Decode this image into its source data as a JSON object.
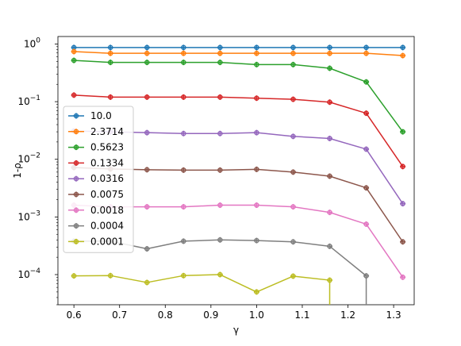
{
  "chart_data": {
    "type": "line",
    "xlabel": "γ",
    "ylabel": "1-ρ",
    "yscale": "log",
    "xlim": [
      0.565,
      1.345
    ],
    "ylim": [
      3e-05,
      1.35
    ],
    "xticks": [
      0.6,
      0.7,
      0.8,
      0.9,
      1.0,
      1.1,
      1.2,
      1.3
    ],
    "xtick_labels": [
      "0.6",
      "0.7",
      "0.8",
      "0.9",
      "1.0",
      "1.1",
      "1.2",
      "1.3"
    ],
    "yticks": [
      1,
      0.1,
      0.01,
      0.001,
      0.0001
    ],
    "ytick_labels": [
      {
        "base": "10",
        "exp": "0"
      },
      {
        "base": "10",
        "exp": "−1"
      },
      {
        "base": "10",
        "exp": "−2"
      },
      {
        "base": "10",
        "exp": "−3"
      },
      {
        "base": "10",
        "exp": "−4"
      }
    ],
    "grid": false,
    "legend_position": "left",
    "x": [
      0.6,
      0.68,
      0.76,
      0.84,
      0.92,
      1.0,
      1.08,
      1.16,
      1.24,
      1.32
    ],
    "series": [
      {
        "name": "10.0",
        "color": "#1f77b4",
        "values": [
          0.87,
          0.87,
          0.87,
          0.87,
          0.87,
          0.87,
          0.87,
          0.87,
          0.87,
          0.87
        ]
      },
      {
        "name": "2.3714",
        "color": "#ff7f0e",
        "values": [
          0.74,
          0.69,
          0.69,
          0.69,
          0.69,
          0.69,
          0.69,
          0.69,
          0.69,
          0.63
        ]
      },
      {
        "name": "0.5623",
        "color": "#2ca02c",
        "values": [
          0.52,
          0.48,
          0.48,
          0.48,
          0.48,
          0.44,
          0.44,
          0.38,
          0.22,
          0.03
        ]
      },
      {
        "name": "0.1334",
        "color": "#d62728",
        "values": [
          0.13,
          0.12,
          0.12,
          0.12,
          0.12,
          0.115,
          0.11,
          0.098,
          0.063,
          0.0075
        ]
      },
      {
        "name": "0.0316",
        "color": "#9467bd",
        "values": [
          0.031,
          0.03,
          0.029,
          0.028,
          0.028,
          0.029,
          0.025,
          0.023,
          0.015,
          0.0017
        ]
      },
      {
        "name": "0.0075",
        "color": "#8c564b",
        "values": [
          0.0072,
          0.0068,
          0.0066,
          0.0065,
          0.0065,
          0.0067,
          0.006,
          0.0051,
          0.0032,
          0.00037
        ]
      },
      {
        "name": "0.0018",
        "color": "#e377c2",
        "values": [
          0.0016,
          0.0015,
          0.0015,
          0.0015,
          0.0016,
          0.0016,
          0.0015,
          0.0012,
          0.00075,
          9e-05
        ]
      },
      {
        "name": "0.0004",
        "color": "#7f7f7f",
        "values": [
          0.00038,
          0.00038,
          0.00028,
          0.00038,
          0.0004,
          0.00039,
          0.00037,
          0.00031,
          9.5e-05,
          3e-05
        ]
      },
      {
        "name": "0.0001",
        "color": "#bcbd22",
        "values": [
          9.5e-05,
          9.6e-05,
          7.3e-05,
          9.6e-05,
          0.0001,
          5e-05,
          9.4e-05,
          8e-05,
          null,
          null
        ]
      }
    ],
    "drops": [
      {
        "series": "0.0004",
        "from_x": 1.24,
        "to": "axis-bottom"
      },
      {
        "series": "0.0001",
        "from_x": 1.16,
        "to": "axis-bottom"
      }
    ]
  }
}
